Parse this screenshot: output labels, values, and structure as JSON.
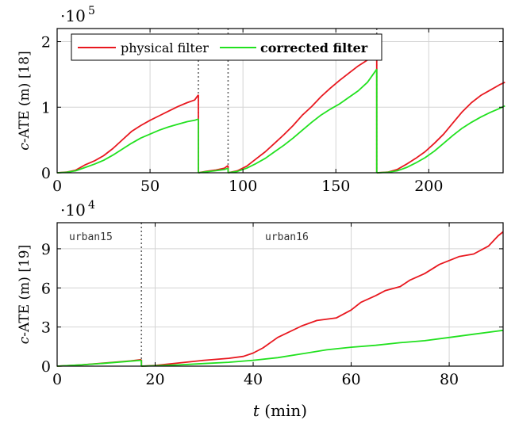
{
  "chart_data": [
    {
      "type": "line",
      "ylabel_prefix": "c",
      "ylabel_rest": "-ATE (m) [18]",
      "y_multiplier_base": "·10",
      "y_multiplier_exp": "5",
      "xlim": [
        0,
        240
      ],
      "ylim": [
        0,
        220000
      ],
      "xticks": [
        0,
        50,
        100,
        150,
        200
      ],
      "yticks": [
        0,
        100000,
        200000
      ],
      "ytick_labels": [
        "0",
        "1",
        "2"
      ],
      "grid": true,
      "legend_position": "top-left",
      "legend": [
        "physical filter",
        "corrected filter"
      ],
      "resets": [
        76,
        92,
        172
      ],
      "series": [
        {
          "name": "physical filter",
          "color": "#e8181f",
          "segments": [
            [
              [
                0,
                0
              ],
              [
                5,
                1000
              ],
              [
                10,
                4000
              ],
              [
                15,
                12000
              ],
              [
                20,
                18000
              ],
              [
                25,
                26000
              ],
              [
                30,
                37000
              ],
              [
                35,
                50000
              ],
              [
                40,
                63000
              ],
              [
                45,
                72000
              ],
              [
                50,
                80000
              ],
              [
                55,
                87000
              ],
              [
                60,
                94000
              ],
              [
                65,
                101000
              ],
              [
                70,
                107000
              ],
              [
                74,
                111000
              ],
              [
                76,
                119000
              ]
            ],
            [
              [
                76,
                0
              ],
              [
                80,
                2000
              ],
              [
                85,
                4000
              ],
              [
                90,
                7000
              ],
              [
                92,
                11000
              ]
            ],
            [
              [
                92,
                0
              ],
              [
                97,
                3000
              ],
              [
                102,
                10000
              ],
              [
                107,
                21000
              ],
              [
                112,
                32000
              ],
              [
                117,
                45000
              ],
              [
                122,
                58000
              ],
              [
                127,
                72000
              ],
              [
                132,
                88000
              ],
              [
                137,
                101000
              ],
              [
                142,
                116000
              ],
              [
                147,
                129000
              ],
              [
                152,
                141000
              ],
              [
                157,
                152000
              ],
              [
                162,
                163000
              ],
              [
                167,
                172000
              ],
              [
                172,
                180000
              ]
            ],
            [
              [
                172,
                0
              ],
              [
                178,
                1000
              ],
              [
                183,
                5000
              ],
              [
                188,
                13000
              ],
              [
                193,
                22000
              ],
              [
                198,
                32000
              ],
              [
                203,
                45000
              ],
              [
                208,
                59000
              ],
              [
                213,
                76000
              ],
              [
                218,
                93000
              ],
              [
                223,
                107000
              ],
              [
                228,
                118000
              ],
              [
                233,
                126000
              ],
              [
                238,
                134000
              ],
              [
                241,
                138000
              ]
            ]
          ]
        },
        {
          "name": "corrected filter",
          "color": "#21e11f",
          "segments": [
            [
              [
                0,
                0
              ],
              [
                5,
                700
              ],
              [
                10,
                3000
              ],
              [
                15,
                8000
              ],
              [
                20,
                13000
              ],
              [
                25,
                19000
              ],
              [
                30,
                27000
              ],
              [
                35,
                36000
              ],
              [
                40,
                45000
              ],
              [
                45,
                53000
              ],
              [
                50,
                59000
              ],
              [
                55,
                65000
              ],
              [
                60,
                70000
              ],
              [
                65,
                74000
              ],
              [
                70,
                78000
              ],
              [
                74,
                80000
              ],
              [
                76,
                82000
              ]
            ],
            [
              [
                76,
                0
              ],
              [
                80,
                1500
              ],
              [
                85,
                3000
              ],
              [
                90,
                5000
              ],
              [
                92,
                7000
              ]
            ],
            [
              [
                92,
                0
              ],
              [
                97,
                2000
              ],
              [
                102,
                7000
              ],
              [
                107,
                14000
              ],
              [
                112,
                22000
              ],
              [
                117,
                32000
              ],
              [
                122,
                42000
              ],
              [
                127,
                53000
              ],
              [
                132,
                65000
              ],
              [
                137,
                77000
              ],
              [
                142,
                88000
              ],
              [
                147,
                97000
              ],
              [
                152,
                105000
              ],
              [
                157,
                115000
              ],
              [
                162,
                125000
              ],
              [
                167,
                138000
              ],
              [
                172,
                158000
              ]
            ],
            [
              [
                172,
                0
              ],
              [
                178,
                700
              ],
              [
                183,
                3000
              ],
              [
                188,
                8000
              ],
              [
                193,
                15000
              ],
              [
                198,
                23000
              ],
              [
                203,
                33000
              ],
              [
                208,
                45000
              ],
              [
                213,
                57000
              ],
              [
                218,
                68000
              ],
              [
                223,
                77000
              ],
              [
                228,
                85000
              ],
              [
                233,
                92000
              ],
              [
                238,
                98000
              ],
              [
                241,
                102000
              ]
            ]
          ]
        }
      ]
    },
    {
      "type": "line",
      "ylabel_prefix": "c",
      "ylabel_rest": "-ATE (m) [19]",
      "xlabel_var": "t",
      "xlabel_rest": " (min)",
      "y_multiplier_base": "·10",
      "y_multiplier_exp": "4",
      "xlim": [
        0,
        91
      ],
      "ylim": [
        0,
        110000
      ],
      "xticks": [
        0,
        20,
        40,
        60,
        80
      ],
      "yticks": [
        0,
        30000,
        60000,
        90000
      ],
      "ytick_labels": [
        "0",
        "3",
        "6",
        "9"
      ],
      "grid": true,
      "segment_labels": [
        "urban15",
        "urban16"
      ],
      "resets": [
        17.2
      ],
      "series": [
        {
          "name": "physical filter",
          "color": "#e8181f",
          "segments": [
            [
              [
                0,
                0
              ],
              [
                5,
                1000
              ],
              [
                10,
                2500
              ],
              [
                15,
                4000
              ],
              [
                17.2,
                5000
              ]
            ],
            [
              [
                17.2,
                0
              ],
              [
                20,
                500
              ],
              [
                25,
                2500
              ],
              [
                30,
                4500
              ],
              [
                35,
                6000
              ],
              [
                38,
                7500
              ],
              [
                40,
                10000
              ],
              [
                42,
                14000
              ],
              [
                45,
                22000
              ],
              [
                50,
                31000
              ],
              [
                53,
                35000
              ],
              [
                57,
                37000
              ],
              [
                60,
                43000
              ],
              [
                62,
                49000
              ],
              [
                65,
                54000
              ],
              [
                67,
                58000
              ],
              [
                70,
                61000
              ],
              [
                72,
                66000
              ],
              [
                75,
                71000
              ],
              [
                78,
                78000
              ],
              [
                82,
                84000
              ],
              [
                85,
                86000
              ],
              [
                88,
                92000
              ],
              [
                90,
                100000
              ],
              [
                91,
                103000
              ]
            ]
          ]
        },
        {
          "name": "corrected filter",
          "color": "#21e11f",
          "segments": [
            [
              [
                0,
                0
              ],
              [
                5,
                1000
              ],
              [
                10,
                2300
              ],
              [
                15,
                3800
              ],
              [
                17.2,
                4500
              ]
            ],
            [
              [
                17.2,
                0
              ],
              [
                20,
                300
              ],
              [
                25,
                1000
              ],
              [
                30,
                2000
              ],
              [
                35,
                3000
              ],
              [
                40,
                4500
              ],
              [
                45,
                6500
              ],
              [
                50,
                9500
              ],
              [
                55,
                12500
              ],
              [
                60,
                14500
              ],
              [
                65,
                16000
              ],
              [
                70,
                18000
              ],
              [
                75,
                19500
              ],
              [
                80,
                22000
              ],
              [
                85,
                24500
              ],
              [
                90,
                27000
              ],
              [
                91,
                27500
              ]
            ]
          ]
        }
      ]
    }
  ]
}
